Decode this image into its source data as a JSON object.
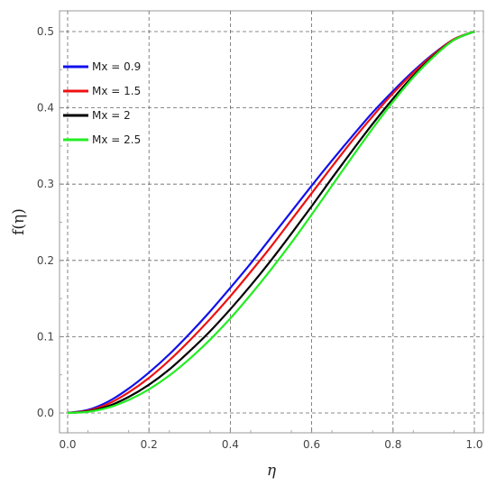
{
  "chart_data": {
    "type": "line",
    "xlabel": "η",
    "ylabel": "f(η)",
    "xlim": [
      0,
      1
    ],
    "ylim": [
      -0.02,
      0.52
    ],
    "xticks": [
      "0.0",
      "0.2",
      "0.4",
      "0.6",
      "0.8",
      "1.0"
    ],
    "yticks": [
      "0.0",
      "0.1",
      "0.2",
      "0.3",
      "0.4",
      "0.5"
    ],
    "grid": true,
    "legend_position": "top-left",
    "series": [
      {
        "name": "Mx = 0.9",
        "color": "#1010ee",
        "x": [
          0,
          0.05,
          0.1,
          0.15,
          0.2,
          0.25,
          0.3,
          0.35,
          0.4,
          0.45,
          0.5,
          0.55,
          0.6,
          0.65,
          0.7,
          0.75,
          0.8,
          0.85,
          0.9,
          0.95,
          1.0
        ],
        "y": [
          0,
          0.004,
          0.015,
          0.032,
          0.053,
          0.077,
          0.104,
          0.133,
          0.164,
          0.196,
          0.23,
          0.264,
          0.298,
          0.331,
          0.363,
          0.394,
          0.422,
          0.448,
          0.471,
          0.49,
          0.5
        ]
      },
      {
        "name": "Mx = 1.5",
        "color": "#ee1010",
        "x": [
          0,
          0.05,
          0.1,
          0.15,
          0.2,
          0.25,
          0.3,
          0.35,
          0.4,
          0.45,
          0.5,
          0.55,
          0.6,
          0.65,
          0.7,
          0.75,
          0.8,
          0.85,
          0.9,
          0.95,
          1.0
        ],
        "y": [
          0,
          0.003,
          0.012,
          0.027,
          0.046,
          0.069,
          0.095,
          0.123,
          0.153,
          0.185,
          0.218,
          0.253,
          0.288,
          0.323,
          0.357,
          0.389,
          0.419,
          0.446,
          0.47,
          0.49,
          0.5
        ]
      },
      {
        "name": "Mx = 2",
        "color": "#000000",
        "x": [
          0,
          0.05,
          0.1,
          0.15,
          0.2,
          0.25,
          0.3,
          0.35,
          0.4,
          0.45,
          0.5,
          0.55,
          0.6,
          0.65,
          0.7,
          0.75,
          0.8,
          0.85,
          0.9,
          0.95,
          1.0
        ],
        "y": [
          0,
          0.002,
          0.009,
          0.021,
          0.037,
          0.057,
          0.081,
          0.107,
          0.136,
          0.167,
          0.2,
          0.235,
          0.271,
          0.308,
          0.344,
          0.379,
          0.412,
          0.442,
          0.468,
          0.489,
          0.5
        ]
      },
      {
        "name": "Mx = 2.5",
        "color": "#22ee22",
        "x": [
          0,
          0.05,
          0.1,
          0.15,
          0.2,
          0.25,
          0.3,
          0.35,
          0.4,
          0.45,
          0.5,
          0.55,
          0.6,
          0.65,
          0.7,
          0.75,
          0.8,
          0.85,
          0.9,
          0.95,
          1.0
        ],
        "y": [
          0,
          0.0015,
          0.007,
          0.017,
          0.031,
          0.049,
          0.071,
          0.096,
          0.124,
          0.155,
          0.188,
          0.223,
          0.26,
          0.298,
          0.336,
          0.373,
          0.408,
          0.44,
          0.467,
          0.489,
          0.5
        ]
      }
    ]
  }
}
